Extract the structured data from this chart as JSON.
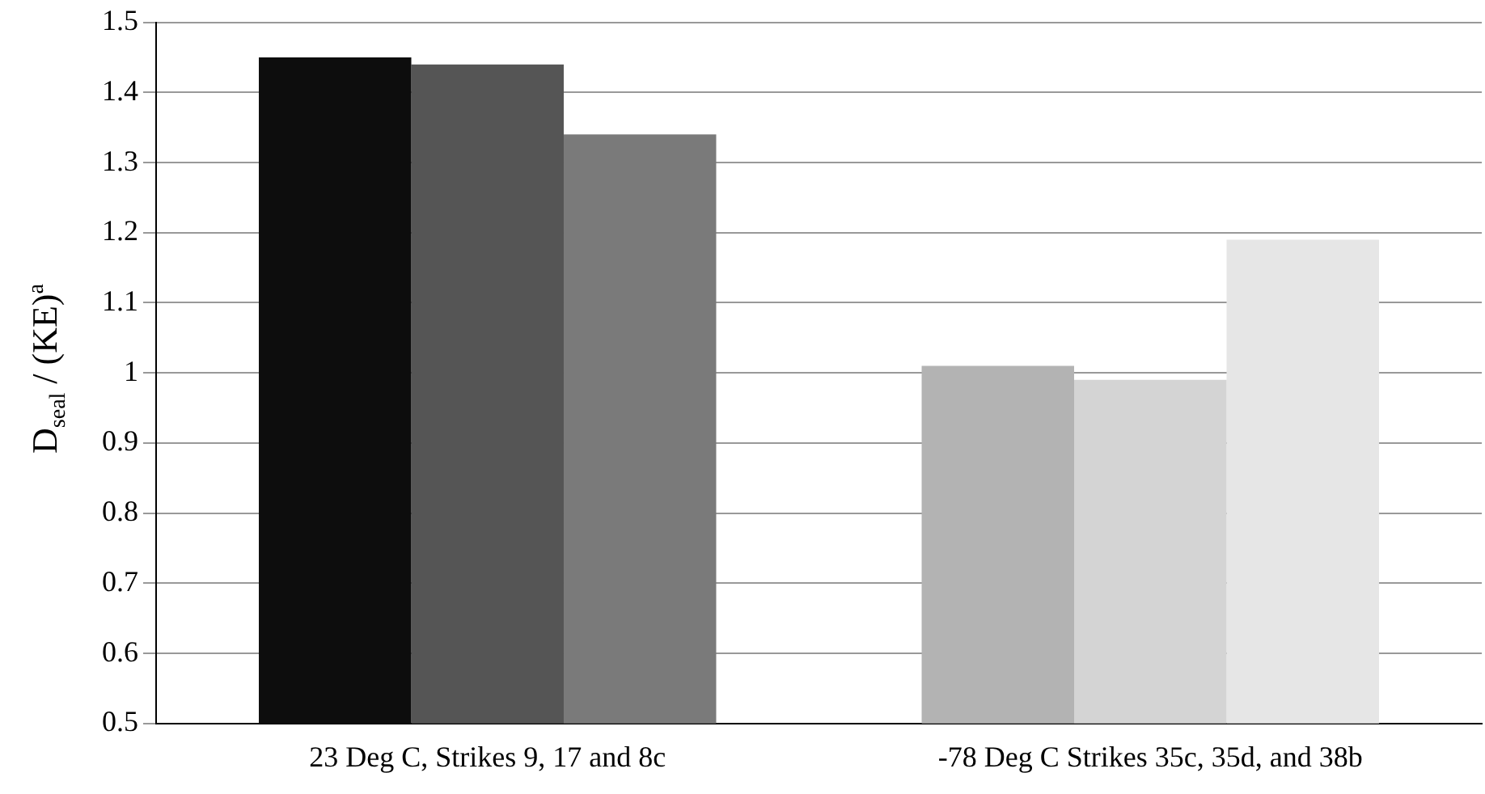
{
  "chart_data": {
    "type": "bar",
    "ylabel": "D$_{seal}$ / (KE)$^{a}$",
    "categories": [
      "23 Deg C, Strikes 9, 17 and 8c",
      "-78 Deg C Strikes 35c, 35d, and 38b"
    ],
    "series": [
      {
        "colors": [
          "#0d0d0d",
          "#b3b3b3"
        ],
        "values": [
          1.45,
          1.01
        ]
      },
      {
        "colors": [
          "#555555",
          "#d4d4d4"
        ],
        "values": [
          1.44,
          0.99
        ]
      },
      {
        "colors": [
          "#7a7a7a",
          "#e6e6e6"
        ],
        "values": [
          1.34,
          1.19
        ]
      }
    ],
    "ylim": [
      0.5,
      1.5
    ],
    "yticks": [
      0.5,
      0.6,
      0.7,
      0.8,
      0.9,
      1,
      1.1,
      1.2,
      1.3,
      1.4,
      1.5
    ],
    "grid": "y",
    "legend": false
  }
}
